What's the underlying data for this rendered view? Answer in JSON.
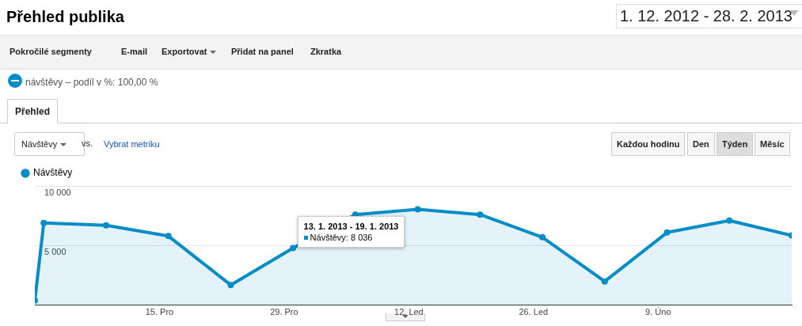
{
  "chart_data": {
    "type": "area",
    "title": "Přehled publika",
    "annotations": [
      "1. 12. 2012 - 28. 2. 2013",
      "Pokročilé segmenty",
      "E-mail",
      "Exportovat",
      "Přidat na panel",
      "Zkratka",
      "návštěvy – podíl v %: 100,00 %",
      "Přehled",
      "Návštěvy",
      "vs.",
      "Vybrat metriku",
      "Každou hodinu",
      "Den",
      "Týden",
      "Měsíc",
      {
        "text": "13. 1. 2013 - 19. 1. 2013",
        "x": "2013-01-13",
        "y": 8036
      },
      "Návštěvy: 8 036"
    ],
    "x": [
      "2012-12-01",
      "2012-12-02",
      "2012-12-09",
      "2012-12-16",
      "2012-12-23",
      "2012-12-30",
      "2013-01-06",
      "2013-01-13",
      "2013-01-20",
      "2013-01-27",
      "2013-02-03",
      "2013-02-10",
      "2013-02-17",
      "2013-02-24"
    ],
    "series": [
      {
        "name": "Návštěvy",
        "color": "#058dc7",
        "values": [
          400,
          6900,
          6700,
          5800,
          1700,
          4800,
          7600,
          8036,
          7600,
          5700,
          2000,
          6100,
          7100,
          5850
        ]
      }
    ],
    "xlim": [
      "2012-12-01",
      "2013-02-24"
    ],
    "xticks": [
      {
        "value": "2012-12-15",
        "label": "15. Pro"
      },
      {
        "value": "2012-12-29",
        "label": "29. Pro"
      },
      {
        "value": "2013-01-12",
        "label": "12. Led"
      },
      {
        "value": "2013-01-26",
        "label": "26. Led"
      },
      {
        "value": "2013-02-09",
        "label": "9. Úno"
      }
    ],
    "ylim": [
      0,
      10000
    ],
    "yticks": [
      {
        "value": 5000,
        "label": "5 000"
      },
      {
        "value": 10000,
        "label": "10 000"
      }
    ],
    "grid": "y",
    "legend": "top left",
    "marker": "circle",
    "line_style": "solid"
  }
}
